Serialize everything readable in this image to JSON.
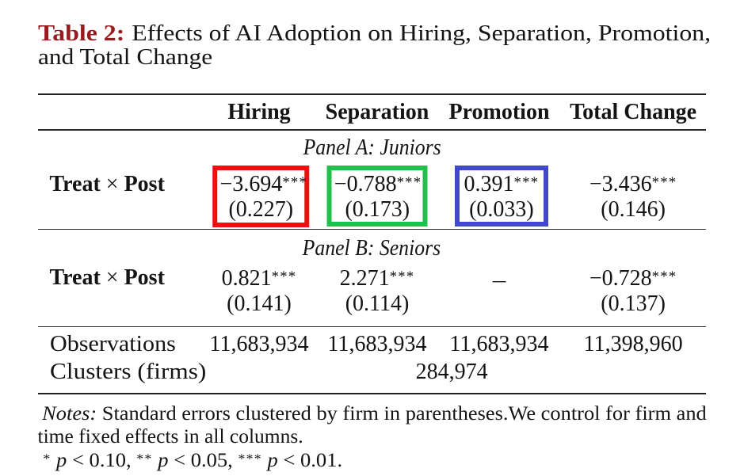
{
  "title": {
    "tag": "Table 2:",
    "line1_rest": "Effects of AI Adoption on Hiring, Separation, Promotion,",
    "line2": "and Total Change"
  },
  "table": {
    "columns": [
      "Hiring",
      "Separation",
      "Promotion",
      "Total Change"
    ],
    "panel_a": {
      "label": "Panel A: Juniors",
      "row_label": {
        "pre": "Treat",
        "times": "×",
        "post": "Post"
      },
      "cells": [
        {
          "value": "−3.694",
          "stars": "***",
          "se": "(0.227)",
          "highlight": "red"
        },
        {
          "value": "−0.788",
          "stars": "***",
          "se": "(0.173)",
          "highlight": "green"
        },
        {
          "value": "0.391",
          "stars": "***",
          "se": "(0.033)",
          "highlight": "blue"
        },
        {
          "value": "−3.436",
          "stars": "***",
          "se": "(0.146)",
          "highlight": "none"
        }
      ]
    },
    "panel_b": {
      "label": "Panel B: Seniors",
      "row_label": {
        "pre": "Treat",
        "times": "×",
        "post": "Post"
      },
      "cells": [
        {
          "value": "0.821",
          "stars": "***",
          "se": "(0.141)",
          "highlight": "none"
        },
        {
          "value": "2.271",
          "stars": "***",
          "se": "(0.114)",
          "highlight": "none"
        },
        {
          "value": "−",
          "stars": "",
          "se": "",
          "highlight": "none"
        },
        {
          "value": "−0.728",
          "stars": "***",
          "se": "(0.137)",
          "highlight": "none"
        }
      ]
    },
    "stats": {
      "observations_label": "Observations",
      "observations": [
        "11,683,934",
        "11,683,934",
        "11,683,934",
        "11,398,960"
      ],
      "clusters_label": "Clusters (firms)",
      "clusters_value": "284,974"
    }
  },
  "notes": {
    "label": "Notes:",
    "line1_rest": " Standard errors clustered by firm in parentheses.We control for firm and",
    "line2": "time fixed effects in all columns.",
    "sig_levels": [
      {
        "stars": "*",
        "p": "p",
        "cmp": "< 0.10,"
      },
      {
        "stars": "**",
        "p": "p",
        "cmp": "< 0.05,"
      },
      {
        "stars": "***",
        "p": "p",
        "cmp": "< 0.01."
      }
    ]
  },
  "colors": {
    "title_tag": "#981b1e",
    "text": "#141414",
    "rule": "#2b2b2b",
    "highlight_red": "#f20d11",
    "highlight_green": "#22bf4d",
    "highlight_blue": "#4149c9"
  }
}
